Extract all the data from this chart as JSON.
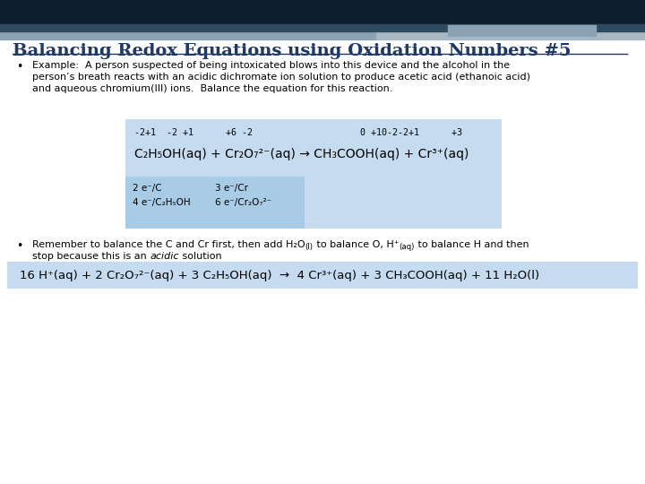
{
  "title": "Balancing Redox Equations using Oxidation Numbers #5",
  "title_color": "#1F3864",
  "bg_color": "#ffffff",
  "header_color": "#0D1F2D",
  "header2_color": "#2E4A5E",
  "accent_color": "#8BA3B5",
  "accent2_color": "#A8B8C4",
  "box_color": "#C5DCF0",
  "subbox_color": "#A8CBE6",
  "bullet1_line1": "Example:  A person suspected of being intoxicated blows into this device and the alcohol in the",
  "bullet1_line2": "person’s breath reacts with an acidic dichromate ion solution to produce acetic acid (ethanoic acid)",
  "bullet1_line3": "and aqueous chromium(III) ions.  Balance the equation for this reaction.",
  "ox_line": "-2+1  -2 +1      +6 -2                    0 +10-2-2+1      +3",
  "eq1_part1": "C",
  "eq1": "C₂H₅OH(aq) + Cr₂O₇",
  "eq1_sup": "2−",
  "eq1_mid": "(aq) → CH₃COOH(aq) + Cr",
  "eq1_sup2": "3+",
  "eq1_end": "(aq)",
  "elec1a": "2 e⁻/C",
  "elec1b": "3 e⁻/Cr",
  "elec2a": "4 e⁻/C₂H₅OH",
  "elec2b": "6 e⁻/Cr₂O₇",
  "elec2b_sup": "2−",
  "b2_pre": "Remember to balance the C and Cr first, then add H₂O",
  "b2_sub1": "(l)",
  "b2_mid": " to balance O, H⁺",
  "b2_sub2": "(aq)",
  "b2_post": " to balance H and then",
  "b2_line2a": "stop because this is an ",
  "b2_italic": "acidic",
  "b2_line2b": " solution",
  "eq2": "16 H⁺(aq) + 2 Cr₂O₇²⁻(aq) + 3 C₂H₅OH(aq)  →  4 Cr³⁺(aq) + 3 CH₃COOH(aq) + 11 H₂O(l)"
}
